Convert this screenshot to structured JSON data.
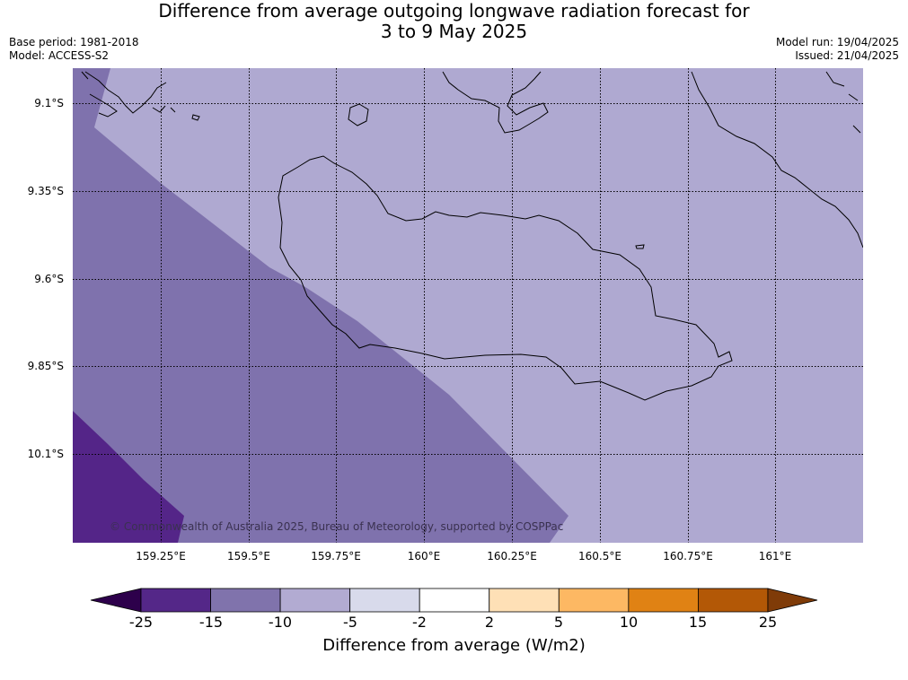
{
  "title": {
    "line1": "Difference from average outgoing longwave radiation forecast for",
    "line2": "3 to 9 May 2025"
  },
  "meta": {
    "base_period": "Base period: 1981-2018",
    "model": "Model: ACCESS-S2",
    "model_run": "Model run: 19/04/2025",
    "issued": "Issued: 21/04/2025"
  },
  "map": {
    "lat_labels": [
      "9.1°S",
      "9.35°S",
      "9.6°S",
      "9.85°S",
      "10.1°S"
    ],
    "lon_labels": [
      "159.25°E",
      "159.5°E",
      "159.75°E",
      "160°E",
      "160.25°E",
      "160.5°E",
      "160.75°E",
      "161°E"
    ],
    "copyright": "© Commonwealth of Australia 2025, Bureau of Meteorology, supported by COSPPac",
    "region_colors": {
      "band_-10_-5": "#afa9d1",
      "band_-15_-10": "#7f72ad",
      "band_-25_-15": "#542588"
    }
  },
  "colorbar": {
    "title": "Difference from average (W/m2)",
    "tick_labels": [
      "-25",
      "-15",
      "-10",
      "-5",
      "-2",
      "2",
      "5",
      "10",
      "15",
      "25"
    ],
    "colors": {
      "under": "#2d004b",
      "bins": [
        "#542788",
        "#8073ac",
        "#b2abd2",
        "#d8daeb",
        "#ffffff",
        "#fee0b6",
        "#fdb863",
        "#e08214",
        "#b35806"
      ],
      "over": "#7f3b08"
    }
  }
}
